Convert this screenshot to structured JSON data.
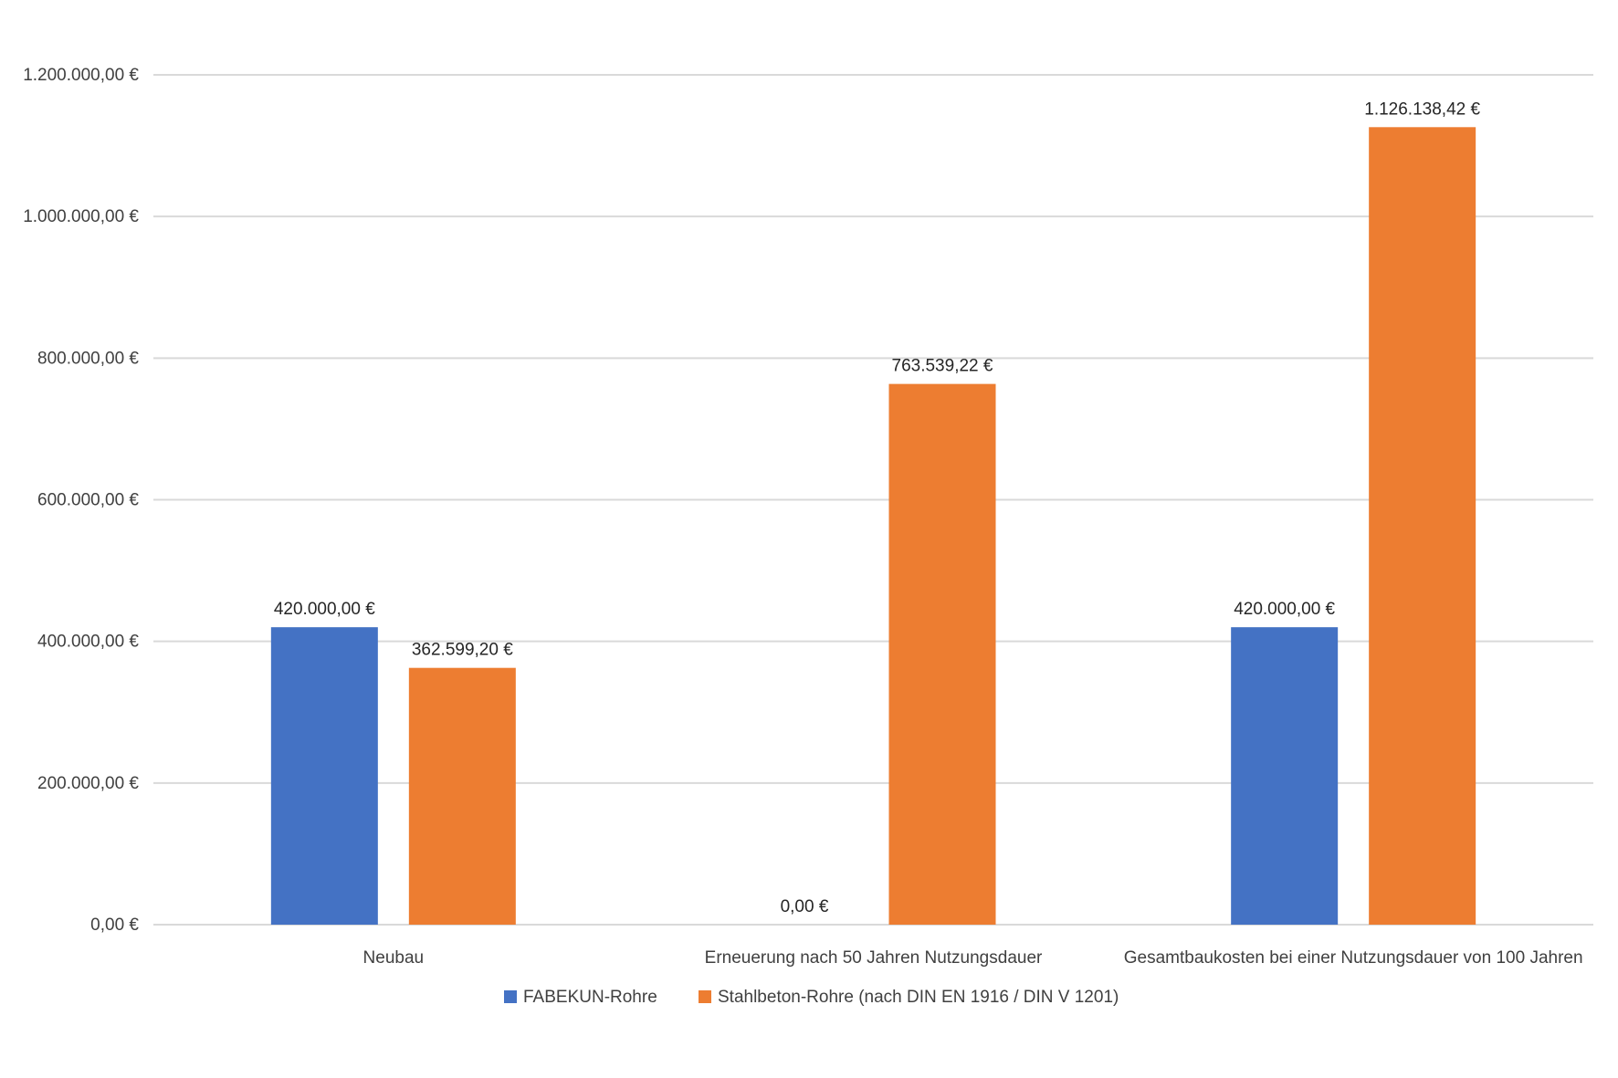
{
  "chart_data": {
    "type": "bar",
    "title": "",
    "xlabel": "",
    "ylabel": "",
    "categories": [
      "Neubau",
      "Erneuerung nach 50 Jahren Nutzungsdauer",
      "Gesamtbaukosten bei einer Nutzungsdauer von 100 Jahren"
    ],
    "series": [
      {
        "name": "FABEKUN-Rohre",
        "color": "#4472C4",
        "values": [
          420000.0,
          0.0,
          420000.0
        ],
        "data_labels": [
          "420.000,00 €",
          "0,00 €",
          "420.000,00 €"
        ]
      },
      {
        "name": "Stahlbeton-Rohre (nach DIN EN 1916 / DIN V 1201)",
        "color": "#ED7D31",
        "values": [
          362599.2,
          763539.22,
          1126138.42
        ],
        "data_labels": [
          "362.599,20 €",
          "763.539,22 €",
          "1.126.138,42 €"
        ]
      }
    ],
    "ylim": [
      0,
      1200000
    ],
    "yticks": [
      0,
      200000,
      400000,
      600000,
      800000,
      1000000,
      1200000
    ],
    "ytick_labels": [
      "0,00 €",
      "200.000,00 €",
      "400.000,00 €",
      "600.000,00 €",
      "800.000,00 €",
      "1.000.000,00 €",
      "1.200.000,00 €"
    ],
    "grid": true,
    "gridline_color": "#D9D9D9",
    "legend_position": "bottom"
  }
}
